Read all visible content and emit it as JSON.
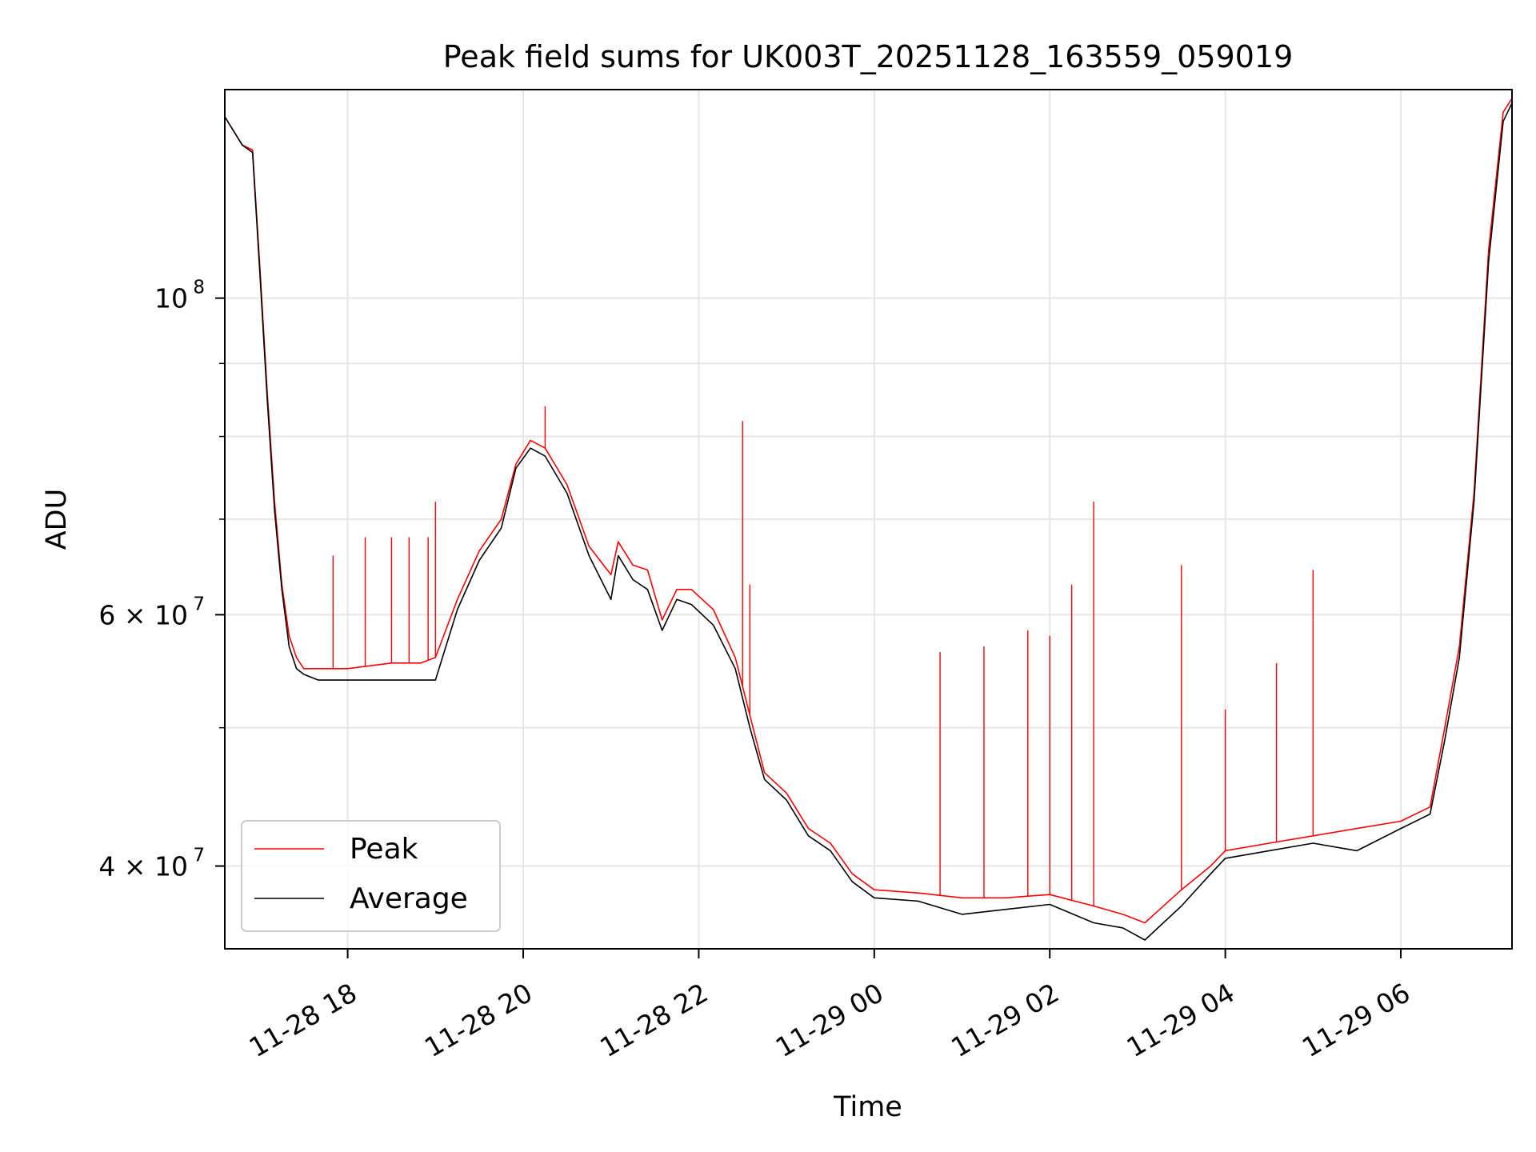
{
  "chart_data": {
    "type": "line",
    "title": "Peak field sums for UK003T_20251128_163559_059019",
    "xlabel": "Time",
    "ylabel": "ADU",
    "yscale": "log",
    "grid": true,
    "legend_placement": "lower-left",
    "xlim": [
      "2025-11-28 16:36",
      "2025-11-29 07:16"
    ],
    "ylim": [
      35000000,
      140000000
    ],
    "x_ticks": [
      {
        "label": "11-28 18",
        "value": "2025-11-28 18:00"
      },
      {
        "label": "11-28 20",
        "value": "2025-11-28 20:00"
      },
      {
        "label": "11-28 22",
        "value": "2025-11-28 22:00"
      },
      {
        "label": "11-29 00",
        "value": "2025-11-29 00:00"
      },
      {
        "label": "11-29 02",
        "value": "2025-11-29 02:00"
      },
      {
        "label": "11-29 04",
        "value": "2025-11-29 04:00"
      },
      {
        "label": "11-29 06",
        "value": "2025-11-29 06:00"
      }
    ],
    "y_major_ticks": [
      {
        "label_base": "10",
        "label_exp": "8",
        "value": 100000000
      },
      {
        "label_base": "6 × 10",
        "label_exp": "7",
        "value": 60000000
      },
      {
        "label_base": "4 × 10",
        "label_exp": "7",
        "value": 40000000
      }
    ],
    "y_minor_ticks": [
      90000000,
      80000000,
      70000000,
      50000000
    ],
    "series": [
      {
        "name": "Peak",
        "color": "#ff0000",
        "x": [
          "2025-11-28 16:36",
          "2025-11-28 16:48",
          "2025-11-28 16:55",
          "2025-11-28 17:00",
          "2025-11-28 17:05",
          "2025-11-28 17:10",
          "2025-11-28 17:15",
          "2025-11-28 17:20",
          "2025-11-28 17:25",
          "2025-11-28 17:30",
          "2025-11-28 17:40",
          "2025-11-28 17:50",
          "2025-11-28 18:00",
          "2025-11-28 18:30",
          "2025-11-28 18:50",
          "2025-11-28 19:00",
          "2025-11-28 19:15",
          "2025-11-28 19:30",
          "2025-11-28 19:45",
          "2025-11-28 19:55",
          "2025-11-28 20:05",
          "2025-11-28 20:15",
          "2025-11-28 20:30",
          "2025-11-28 20:45",
          "2025-11-28 21:00",
          "2025-11-28 21:05",
          "2025-11-28 21:15",
          "2025-11-28 21:25",
          "2025-11-28 21:35",
          "2025-11-28 21:45",
          "2025-11-28 21:55",
          "2025-11-28 22:10",
          "2025-11-28 22:25",
          "2025-11-28 22:35",
          "2025-11-28 22:45",
          "2025-11-28 23:00",
          "2025-11-28 23:15",
          "2025-11-28 23:30",
          "2025-11-28 23:45",
          "2025-11-29 00:00",
          "2025-11-29 00:30",
          "2025-11-29 01:00",
          "2025-11-29 01:30",
          "2025-11-29 02:00",
          "2025-11-29 02:30",
          "2025-11-29 02:50",
          "2025-11-29 03:05",
          "2025-11-29 03:30",
          "2025-11-29 03:50",
          "2025-11-29 04:00",
          "2025-11-29 04:30",
          "2025-11-29 05:00",
          "2025-11-29 05:30",
          "2025-11-29 06:00",
          "2025-11-29 06:20",
          "2025-11-29 06:30",
          "2025-11-29 06:40",
          "2025-11-29 06:50",
          "2025-11-29 07:00",
          "2025-11-29 07:10",
          "2025-11-29 07:16"
        ],
        "values": [
          134000000,
          128000000,
          127000000,
          105000000,
          86000000,
          72000000,
          63000000,
          58000000,
          56000000,
          55000000,
          55000000,
          55000000,
          55000000,
          55500000,
          55500000,
          56000000,
          61500000,
          66500000,
          70000000,
          76500000,
          79500000,
          78500000,
          74000000,
          67000000,
          64000000,
          67500000,
          65000000,
          64500000,
          59500000,
          62500000,
          62500000,
          60500000,
          56000000,
          51000000,
          46500000,
          45000000,
          42500000,
          41500000,
          39500000,
          38500000,
          38300000,
          38000000,
          38000000,
          38200000,
          37500000,
          37000000,
          36500000,
          38500000,
          40000000,
          41000000,
          41500000,
          42000000,
          42500000,
          43000000,
          44000000,
          50000000,
          57000000,
          73000000,
          108000000,
          135000000,
          138000000
        ]
      },
      {
        "name": "Average",
        "color": "#000000",
        "x": [
          "2025-11-28 16:36",
          "2025-11-28 16:48",
          "2025-11-28 16:55",
          "2025-11-28 17:00",
          "2025-11-28 17:05",
          "2025-11-28 17:10",
          "2025-11-28 17:15",
          "2025-11-28 17:20",
          "2025-11-28 17:25",
          "2025-11-28 17:30",
          "2025-11-28 17:40",
          "2025-11-28 17:50",
          "2025-11-28 18:00",
          "2025-11-28 18:30",
          "2025-11-28 18:50",
          "2025-11-28 19:00",
          "2025-11-28 19:15",
          "2025-11-28 19:30",
          "2025-11-28 19:45",
          "2025-11-28 19:55",
          "2025-11-28 20:05",
          "2025-11-28 20:15",
          "2025-11-28 20:30",
          "2025-11-28 20:45",
          "2025-11-28 21:00",
          "2025-11-28 21:05",
          "2025-11-28 21:15",
          "2025-11-28 21:25",
          "2025-11-28 21:35",
          "2025-11-28 21:45",
          "2025-11-28 21:55",
          "2025-11-28 22:10",
          "2025-11-28 22:25",
          "2025-11-28 22:35",
          "2025-11-28 22:45",
          "2025-11-28 23:00",
          "2025-11-28 23:15",
          "2025-11-28 23:30",
          "2025-11-28 23:45",
          "2025-11-29 00:00",
          "2025-11-29 00:30",
          "2025-11-29 01:00",
          "2025-11-29 01:30",
          "2025-11-29 02:00",
          "2025-11-29 02:30",
          "2025-11-29 02:50",
          "2025-11-29 03:05",
          "2025-11-29 03:30",
          "2025-11-29 03:50",
          "2025-11-29 04:00",
          "2025-11-29 04:30",
          "2025-11-29 05:00",
          "2025-11-29 05:30",
          "2025-11-29 06:00",
          "2025-11-29 06:20",
          "2025-11-29 06:30",
          "2025-11-29 06:40",
          "2025-11-29 06:50",
          "2025-11-29 07:00",
          "2025-11-29 07:10",
          "2025-11-29 07:16"
        ],
        "values": [
          134000000,
          128000000,
          126500000,
          104000000,
          85000000,
          71000000,
          62500000,
          57000000,
          55000000,
          54500000,
          54000000,
          54000000,
          54000000,
          54000000,
          54000000,
          54000000,
          60500000,
          65500000,
          69000000,
          76000000,
          78500000,
          77500000,
          73000000,
          66000000,
          61500000,
          66000000,
          63500000,
          62500000,
          58500000,
          61500000,
          61000000,
          59000000,
          55000000,
          50000000,
          46000000,
          44500000,
          42000000,
          41000000,
          39000000,
          38000000,
          37800000,
          37000000,
          37300000,
          37600000,
          36500000,
          36200000,
          35500000,
          37500000,
          39500000,
          40500000,
          41000000,
          41500000,
          41000000,
          42500000,
          43500000,
          49000000,
          56000000,
          72000000,
          106000000,
          133000000,
          137000000
        ]
      }
    ],
    "spikes": {
      "series": "Peak",
      "x": [
        "2025-11-28 17:50",
        "2025-11-28 18:12",
        "2025-11-28 18:30",
        "2025-11-28 18:42",
        "2025-11-28 18:55",
        "2025-11-28 19:00",
        "2025-11-28 20:15",
        "2025-11-28 22:30",
        "2025-11-28 22:35",
        "2025-11-29 00:45",
        "2025-11-29 01:15",
        "2025-11-29 01:45",
        "2025-11-29 02:00",
        "2025-11-29 02:15",
        "2025-11-29 02:30",
        "2025-11-29 03:30",
        "2025-11-29 04:00",
        "2025-11-29 04:35",
        "2025-11-29 05:00"
      ],
      "values": [
        66000000,
        68000000,
        68000000,
        68000000,
        68000000,
        72000000,
        84000000,
        82000000,
        63000000,
        56500000,
        57000000,
        58500000,
        58000000,
        63000000,
        72000000,
        65000000,
        51500000,
        55500000,
        64500000
      ]
    }
  }
}
